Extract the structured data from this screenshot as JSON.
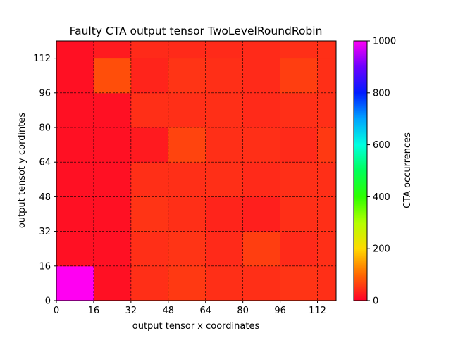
{
  "chart_data": {
    "type": "heatmap",
    "title": "Faulty CTA output tensor TwoLevelRoundRobin",
    "xlabel": "output tensor x coordinates",
    "ylabel": "output tensot y cordintes",
    "x_edges": [
      0,
      16,
      32,
      48,
      64,
      80,
      96,
      112,
      120
    ],
    "y_edges": [
      0,
      16,
      32,
      48,
      64,
      80,
      96,
      112,
      120
    ],
    "x_ticks": [
      "0",
      "16",
      "32",
      "48",
      "64",
      "80",
      "96",
      "112"
    ],
    "y_ticks": [
      "0",
      "16",
      "32",
      "48",
      "64",
      "80",
      "96",
      "112"
    ],
    "xlim": [
      0,
      120
    ],
    "ylim": [
      0,
      120
    ],
    "grid": true,
    "colorbar": {
      "label": "CTA occurrences",
      "range": [
        0,
        1000
      ],
      "ticks": [
        "0",
        "200",
        "400",
        "600",
        "800",
        "1000"
      ],
      "colormap": "gist_rainbow"
    },
    "values_rows_bottom_to_top": [
      [
        1000,
        15,
        45,
        55,
        45,
        45,
        50,
        45
      ],
      [
        15,
        15,
        45,
        50,
        40,
        60,
        40,
        45
      ],
      [
        15,
        15,
        50,
        45,
        35,
        30,
        45,
        45
      ],
      [
        15,
        15,
        45,
        45,
        45,
        40,
        45,
        45
      ],
      [
        15,
        15,
        25,
        65,
        45,
        45,
        40,
        55
      ],
      [
        15,
        15,
        45,
        45,
        45,
        40,
        45,
        45
      ],
      [
        15,
        75,
        35,
        50,
        45,
        40,
        60,
        45
      ],
      [
        15,
        25,
        40,
        40,
        40,
        40,
        45,
        45
      ]
    ]
  }
}
